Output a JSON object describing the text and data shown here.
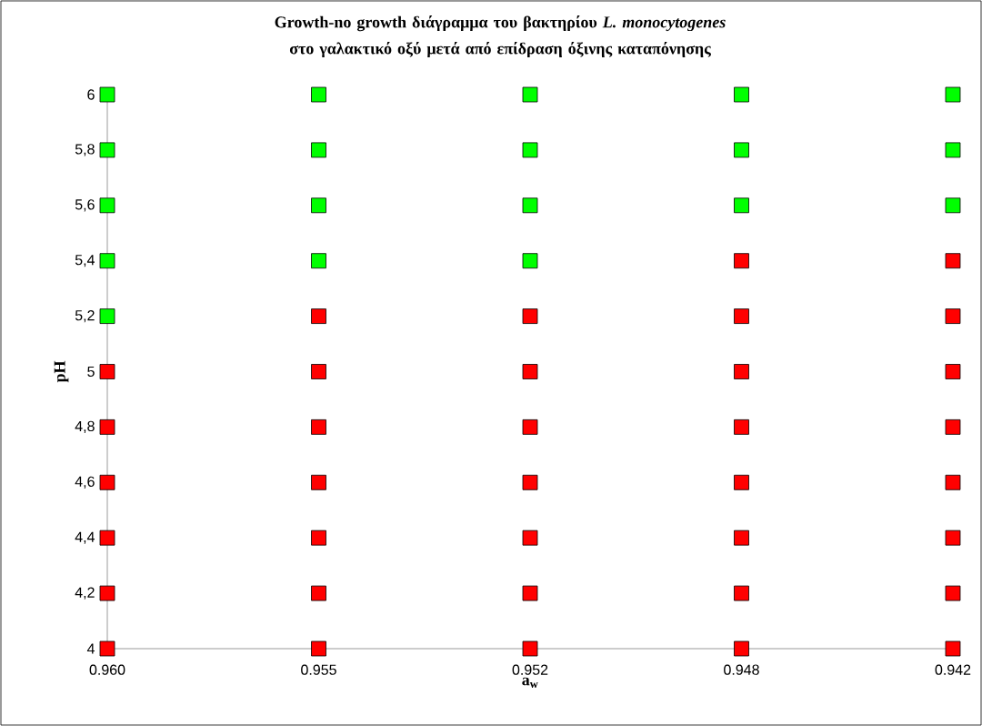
{
  "chart_data": {
    "type": "scatter",
    "title": "Growth-no growth διάγραμμα του βακτηρίου *L. monocytogenes* στο γαλακτικό οξύ μετά από επίδραση όξινης καταπόνησης",
    "xlabel": "a$_{w}$",
    "ylabel": "pH",
    "categories": [
      "0.960",
      "0.955",
      "0.952",
      "0.948",
      "0.942"
    ],
    "ylim": [
      4,
      6
    ],
    "yticks": [
      4,
      {
        "value": 4.2,
        "label": "4,2"
      },
      {
        "value": 4.4,
        "label": "4,4"
      },
      {
        "value": 4.6,
        "label": "4,6"
      },
      {
        "value": 4.8,
        "label": "4,8"
      },
      5,
      {
        "value": 5.2,
        "label": "5,2"
      },
      {
        "value": 5.4,
        "label": "5,4"
      },
      {
        "value": 5.6,
        "label": "5,6"
      },
      {
        "value": 5.8,
        "label": "5,8"
      },
      6
    ],
    "marker": "square",
    "series": [
      {
        "color": "#00ff00",
        "x": [
          "0.960",
          "0.960",
          "0.960",
          "0.960",
          "0.960",
          "0.955",
          "0.955",
          "0.955",
          "0.955",
          "0.952",
          "0.952",
          "0.952",
          "0.952",
          "0.948",
          "0.948",
          "0.948",
          "0.942",
          "0.942",
          "0.942"
        ],
        "values": [
          5.2,
          5.4,
          5.6,
          5.8,
          6,
          5.4,
          5.6,
          5.8,
          6,
          5.4,
          5.6,
          5.8,
          6,
          5.6,
          5.8,
          6,
          5.6,
          5.8,
          6
        ]
      },
      {
        "color": "#ff0000",
        "x": [
          "0.960",
          "0.960",
          "0.960",
          "0.960",
          "0.960",
          "0.960",
          "0.955",
          "0.955",
          "0.955",
          "0.955",
          "0.955",
          "0.955",
          "0.955",
          "0.952",
          "0.952",
          "0.952",
          "0.952",
          "0.952",
          "0.952",
          "0.952",
          "0.948",
          "0.948",
          "0.948",
          "0.948",
          "0.948",
          "0.948",
          "0.948",
          "0.948",
          "0.942",
          "0.942",
          "0.942",
          "0.942",
          "0.942",
          "0.942",
          "0.942",
          "0.942"
        ],
        "values": [
          4,
          4.2,
          4.4,
          4.6,
          4.8,
          5,
          4,
          4.2,
          4.4,
          4.6,
          4.8,
          5,
          5.2,
          4,
          4.2,
          4.4,
          4.6,
          4.8,
          5,
          5.2,
          4,
          4.2,
          4.4,
          4.6,
          4.8,
          5,
          5.2,
          5.4,
          4,
          4.2,
          4.4,
          4.6,
          4.8,
          5,
          5.2,
          5.4
        ]
      }
    ]
  }
}
